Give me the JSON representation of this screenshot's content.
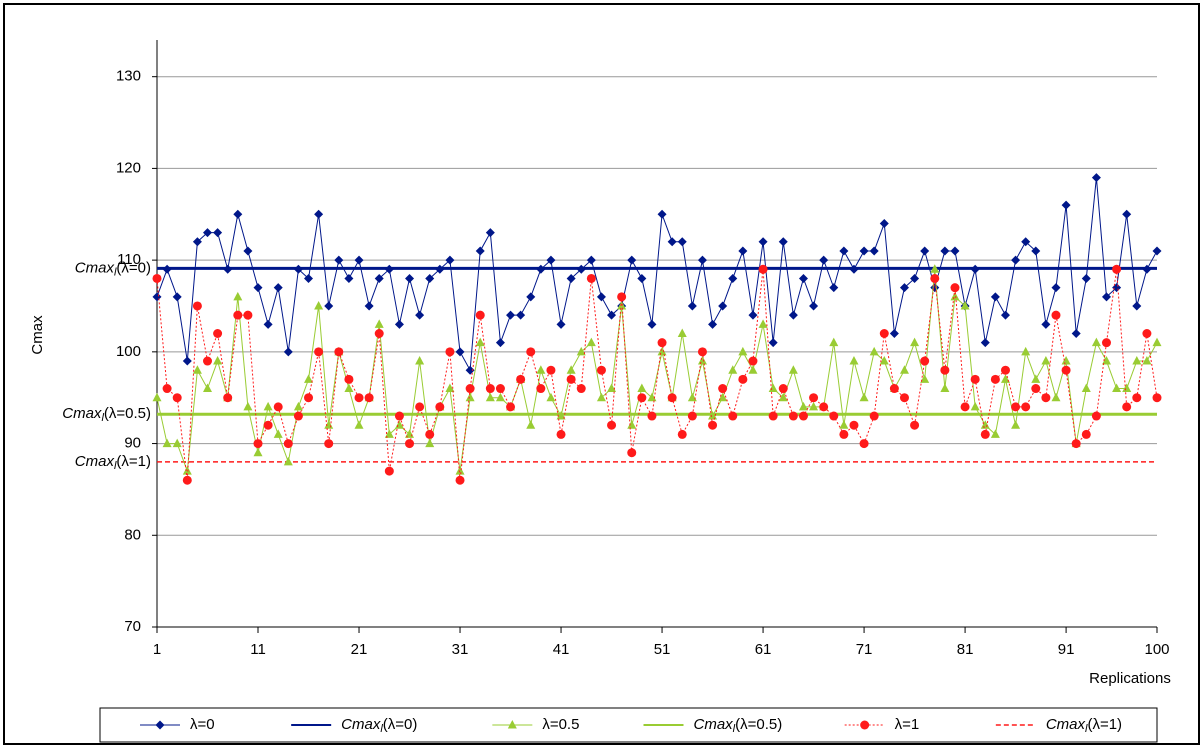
{
  "chart_data": {
    "type": "line",
    "y_label": "Cmax",
    "x_label": "Replications",
    "xlim": [
      1,
      100
    ],
    "xticks": [
      1,
      11,
      21,
      31,
      41,
      51,
      61,
      71,
      81,
      91,
      100
    ],
    "ylim": [
      70,
      134
    ],
    "yticks": [
      70,
      80,
      90,
      100,
      110,
      120,
      130
    ],
    "grid": true,
    "x": [
      1,
      2,
      3,
      4,
      5,
      6,
      7,
      8,
      9,
      10,
      11,
      12,
      13,
      14,
      15,
      16,
      17,
      18,
      19,
      20,
      21,
      22,
      23,
      24,
      25,
      26,
      27,
      28,
      29,
      30,
      31,
      32,
      33,
      34,
      35,
      36,
      37,
      38,
      39,
      40,
      41,
      42,
      43,
      44,
      45,
      46,
      47,
      48,
      49,
      50,
      51,
      52,
      53,
      54,
      55,
      56,
      57,
      58,
      59,
      60,
      61,
      62,
      63,
      64,
      65,
      66,
      67,
      68,
      69,
      70,
      71,
      72,
      73,
      74,
      75,
      76,
      77,
      78,
      79,
      80,
      81,
      82,
      83,
      84,
      85,
      86,
      87,
      88,
      89,
      90,
      91,
      92,
      93,
      94,
      95,
      96,
      97,
      98,
      99,
      100
    ],
    "series": [
      {
        "name": "λ=0",
        "color": "#00178a",
        "marker": "diamond",
        "dash": "solid",
        "values": [
          106,
          109,
          106,
          99,
          112,
          113,
          113,
          109,
          115,
          111,
          107,
          103,
          107,
          100,
          109,
          108,
          115,
          105,
          110,
          108,
          110,
          105,
          108,
          109,
          103,
          108,
          104,
          108,
          109,
          110,
          100,
          98,
          111,
          113,
          101,
          104,
          104,
          106,
          109,
          110,
          103,
          108,
          109,
          110,
          106,
          104,
          105,
          110,
          108,
          103,
          115,
          112,
          112,
          105,
          110,
          103,
          105,
          108,
          111,
          104,
          112,
          101,
          112,
          104,
          108,
          105,
          110,
          107,
          111,
          109,
          111,
          111,
          114,
          102,
          107,
          108,
          111,
          107,
          111,
          111,
          105,
          109,
          101,
          106,
          104,
          110,
          112,
          111,
          103,
          107,
          116,
          102,
          108,
          119,
          106,
          107,
          115,
          105,
          109,
          111
        ]
      },
      {
        "name": "λ=0.5",
        "color": "#99cc33",
        "marker": "triangle",
        "dash": "solid",
        "values": [
          95,
          90,
          90,
          87,
          98,
          96,
          99,
          95,
          106,
          94,
          89,
          94,
          91,
          88,
          94,
          97,
          105,
          92,
          100,
          96,
          92,
          95,
          103,
          91,
          92,
          91,
          99,
          90,
          94,
          96,
          87,
          95,
          101,
          95,
          95,
          94,
          97,
          92,
          98,
          95,
          93,
          98,
          100,
          101,
          95,
          96,
          105,
          92,
          96,
          95,
          100,
          95,
          102,
          95,
          99,
          93,
          95,
          98,
          100,
          98,
          103,
          96,
          95,
          98,
          94,
          94,
          94,
          101,
          92,
          99,
          95,
          100,
          99,
          96,
          98,
          101,
          97,
          109,
          96,
          106,
          105,
          94,
          92,
          91,
          97,
          92,
          100,
          97,
          99,
          95,
          99,
          90,
          96,
          101,
          99,
          96,
          96,
          99,
          99,
          101
        ]
      },
      {
        "name": "λ=1",
        "color": "#ff1a1a",
        "marker": "circle",
        "dash": "dotted",
        "values": [
          108,
          96,
          95,
          86,
          105,
          99,
          102,
          95,
          104,
          104,
          90,
          92,
          94,
          90,
          93,
          95,
          100,
          90,
          100,
          97,
          95,
          95,
          102,
          87,
          93,
          90,
          94,
          91,
          94,
          100,
          86,
          96,
          104,
          96,
          96,
          94,
          97,
          100,
          96,
          98,
          91,
          97,
          96,
          108,
          98,
          92,
          106,
          89,
          95,
          93,
          101,
          95,
          91,
          93,
          100,
          92,
          96,
          93,
          97,
          99,
          109,
          93,
          96,
          93,
          93,
          95,
          94,
          93,
          91,
          92,
          90,
          93,
          102,
          96,
          95,
          92,
          99,
          108,
          98,
          107,
          94,
          97,
          91,
          97,
          98,
          94,
          94,
          96,
          95,
          104,
          98,
          90,
          91,
          93,
          101,
          109,
          94,
          95,
          102,
          95
        ]
      }
    ],
    "reference_lines": [
      {
        "name_parts": [
          "Cmax",
          "l",
          "(λ=0)"
        ],
        "value": 109.1,
        "color": "#00178a",
        "dash": "solid"
      },
      {
        "name_parts": [
          "Cmax",
          "l",
          "(λ=0.5)"
        ],
        "value": 93.2,
        "color": "#99cc33",
        "dash": "solid"
      },
      {
        "name_parts": [
          "Cmax",
          "l",
          "(λ=1)"
        ],
        "value": 88,
        "color": "#ff1a1a",
        "dash": "dashed"
      }
    ]
  }
}
